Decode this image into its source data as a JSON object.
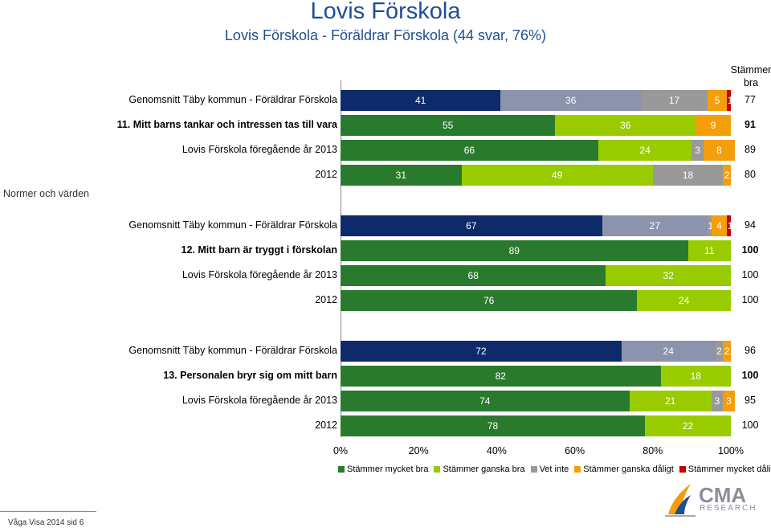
{
  "title": "Lovis Förskola",
  "subtitle": "Lovis Förskola - Föräldrar Förskola (44 svar,  76%)",
  "score_header": "Stämmer bra",
  "section_label": "Normer och värden",
  "footer": "Våga Visa 2014 sid 6",
  "logo": {
    "name": "CMA",
    "sub": "RESEARCH"
  },
  "colors": {
    "mycket_bra": "#0e2a6a",
    "mycket_bra_own": "#2a7a2e",
    "ganska_bra": "#99cc00",
    "ganska_bra_avg": "#8c93ad",
    "vet_inte": "#999999",
    "ganska_daligt": "#f59e0b",
    "mycket_daligt": "#c00000"
  },
  "chart_data": {
    "type": "bar",
    "stacked": true,
    "orientation": "horizontal",
    "xlim": [
      0,
      100
    ],
    "xticks": [
      "0%",
      "20%",
      "40%",
      "60%",
      "80%",
      "100%"
    ],
    "legend": [
      {
        "name": "Stämmer mycket bra",
        "color": "#2a7a2e"
      },
      {
        "name": "Stämmer ganska bra",
        "color": "#99cc00"
      },
      {
        "name": "Vet inte",
        "color": "#999999"
      },
      {
        "name": "Stämmer ganska dåligt",
        "color": "#f59e0b"
      },
      {
        "name": "Stämmer mycket dåligt",
        "color": "#c00000"
      }
    ],
    "groups": [
      {
        "rows": [
          {
            "label": "Genomsnitt Täby kommun - Föräldrar Förskola",
            "bold": false,
            "avg": true,
            "values": [
              41,
              36,
              17,
              5,
              1
            ],
            "labels": [
              "41",
              "36",
              "17",
              "5",
              "1"
            ],
            "score": "77",
            "score_bold": false
          },
          {
            "label": "11. Mitt barns tankar och intressen tas till vara",
            "bold": true,
            "avg": false,
            "values": [
              55,
              36,
              0,
              9,
              0
            ],
            "labels": [
              "55",
              "36",
              "",
              "9",
              "0"
            ],
            "score": "91",
            "score_bold": true
          },
          {
            "label": "Lovis Förskola föregående år 2013",
            "bold": false,
            "avg": false,
            "values": [
              66,
              24,
              3,
              8,
              0
            ],
            "labels": [
              "66",
              "24",
              "3",
              "8",
              "0"
            ],
            "score": "89",
            "score_bold": false
          },
          {
            "label": "2012",
            "bold": false,
            "avg": false,
            "values": [
              31,
              49,
              18,
              2,
              0
            ],
            "labels": [
              "31",
              "49",
              "18",
              "2",
              "0"
            ],
            "score": "80",
            "score_bold": false
          }
        ]
      },
      {
        "rows": [
          {
            "label": "Genomsnitt Täby kommun - Föräldrar Förskola",
            "bold": false,
            "avg": true,
            "values": [
              67,
              27,
              1,
              4,
              1
            ],
            "labels": [
              "67",
              "27",
              "1",
              "4",
              "1"
            ],
            "score": "94",
            "score_bold": false
          },
          {
            "label": "12. Mitt barn är tryggt i förskolan",
            "bold": true,
            "avg": false,
            "values": [
              89,
              11,
              0,
              0,
              0
            ],
            "labels": [
              "89",
              "11",
              "",
              "",
              "0"
            ],
            "score": "100",
            "score_bold": true
          },
          {
            "label": "Lovis Förskola föregående år 2013",
            "bold": false,
            "avg": false,
            "values": [
              68,
              32,
              0,
              0,
              0
            ],
            "labels": [
              "68",
              "32",
              "",
              "",
              "0"
            ],
            "score": "100",
            "score_bold": false
          },
          {
            "label": "2012",
            "bold": false,
            "avg": false,
            "values": [
              76,
              24,
              0,
              0,
              0
            ],
            "labels": [
              "76",
              "24",
              "",
              "",
              "0"
            ],
            "score": "100",
            "score_bold": false
          }
        ]
      },
      {
        "rows": [
          {
            "label": "Genomsnitt Täby kommun - Föräldrar Förskola",
            "bold": false,
            "avg": true,
            "values": [
              72,
              24,
              2,
              2,
              0
            ],
            "labels": [
              "72",
              "24",
              "2",
              "2",
              "0"
            ],
            "score": "96",
            "score_bold": false
          },
          {
            "label": "13. Personalen bryr sig om mitt barn",
            "bold": true,
            "avg": false,
            "values": [
              82,
              18,
              0,
              0,
              0
            ],
            "labels": [
              "82",
              "18",
              "",
              "",
              "0"
            ],
            "score": "100",
            "score_bold": true
          },
          {
            "label": "Lovis Förskola föregående år 2013",
            "bold": false,
            "avg": false,
            "values": [
              74,
              21,
              3,
              3,
              0
            ],
            "labels": [
              "74",
              "21",
              "3",
              "3",
              "0"
            ],
            "score": "95",
            "score_bold": false
          },
          {
            "label": "2012",
            "bold": false,
            "avg": false,
            "values": [
              78,
              22,
              0,
              0,
              0
            ],
            "labels": [
              "78",
              "22",
              "",
              "",
              "0"
            ],
            "score": "100",
            "score_bold": false
          }
        ]
      }
    ]
  }
}
